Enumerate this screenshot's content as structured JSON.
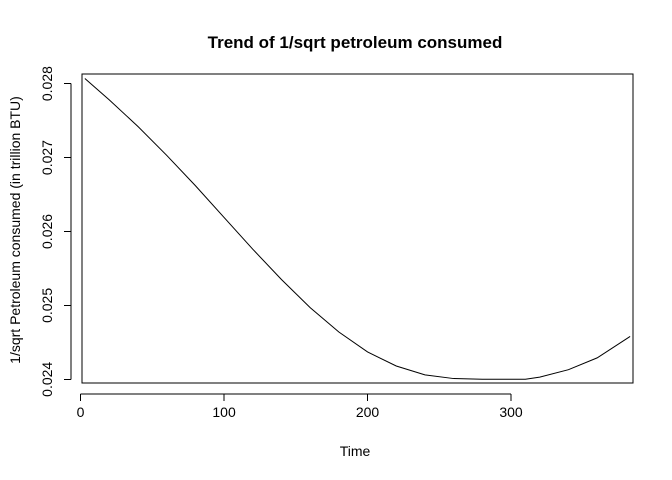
{
  "chart_data": {
    "type": "line",
    "title": "Trend of 1/sqrt petroleum consumed",
    "xlabel": "Time",
    "ylabel": "1/sqrt Petroleum consumed (in trillion BTU)",
    "xlim": [
      1,
      385
    ],
    "ylim": [
      0.02395,
      0.02813
    ],
    "xticks": [
      0,
      100,
      200,
      300
    ],
    "yticks": [
      0.024,
      0.025,
      0.026,
      0.027,
      0.028
    ],
    "xtick_labels": [
      "0",
      "100",
      "200",
      "300"
    ],
    "ytick_labels": [
      "0.024",
      "0.025",
      "0.026",
      "0.027",
      "0.028"
    ],
    "grid": false,
    "legend": "none",
    "series": [
      {
        "x": [
          3,
          20,
          40,
          60,
          80,
          100,
          120,
          140,
          160,
          180,
          200,
          220,
          240,
          260,
          280,
          300,
          310,
          320,
          340,
          360,
          383
        ],
        "y": [
          0.02807,
          0.02778,
          0.02742,
          0.02703,
          0.02662,
          0.02619,
          0.02576,
          0.02535,
          0.02497,
          0.02464,
          0.02437,
          0.02418,
          0.02406,
          0.02401,
          0.024,
          0.024,
          0.024,
          0.02403,
          0.02413,
          0.02429,
          0.02458
        ],
        "color": "#000000"
      }
    ]
  }
}
